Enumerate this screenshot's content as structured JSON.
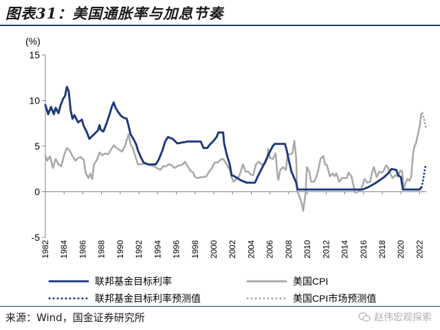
{
  "header": {
    "title": "图表31：美国通胀率与加息节奏"
  },
  "footer": {
    "source": "来源：Wind，国金证券研究所",
    "watermark": "赵伟宏观探索"
  },
  "chart_data": {
    "type": "line",
    "title": "",
    "unit_label": "(%)",
    "xlabel": "",
    "ylabel": "",
    "xlim": [
      1982,
      2022.7
    ],
    "ylim": [
      -5,
      15
    ],
    "yticks": [
      -5,
      0,
      5,
      10,
      15
    ],
    "xticks": [
      1982,
      1984,
      1986,
      1988,
      1990,
      1992,
      1994,
      1996,
      1998,
      2000,
      2002,
      2004,
      2006,
      2008,
      2010,
      2012,
      2014,
      2016,
      2018,
      2020,
      2022
    ],
    "grid": false,
    "legend_position": "bottom",
    "colors": {
      "fed": "#1f3a7a",
      "cpi": "#a9a9a9",
      "axis": "#808080"
    },
    "series": [
      {
        "name": "联邦基金目标利率",
        "style": "solid",
        "color": "#1f3a7a",
        "points": [
          [
            1982,
            9.5
          ],
          [
            1982.3,
            8.5
          ],
          [
            1982.6,
            9.3
          ],
          [
            1982.9,
            8.5
          ],
          [
            1983.1,
            9.2
          ],
          [
            1983.4,
            8.6
          ],
          [
            1983.6,
            9.4
          ],
          [
            1983.9,
            10.2
          ],
          [
            1984.1,
            10.5
          ],
          [
            1984.3,
            11.5
          ],
          [
            1984.5,
            11.0
          ],
          [
            1984.7,
            8.9
          ],
          [
            1984.9,
            8.0
          ],
          [
            1985.1,
            8.4
          ],
          [
            1985.5,
            7.6
          ],
          [
            1985.9,
            7.9
          ],
          [
            1986.1,
            7.2
          ],
          [
            1986.4,
            6.6
          ],
          [
            1986.7,
            5.8
          ],
          [
            1986.9,
            6.0
          ],
          [
            1987.2,
            6.3
          ],
          [
            1987.6,
            6.7
          ],
          [
            1987.8,
            7.3
          ],
          [
            1987.9,
            6.8
          ],
          [
            1988.2,
            6.6
          ],
          [
            1988.5,
            7.4
          ],
          [
            1988.8,
            8.3
          ],
          [
            1989.1,
            9.3
          ],
          [
            1989.3,
            9.8
          ],
          [
            1989.5,
            9.2
          ],
          [
            1989.8,
            8.7
          ],
          [
            1990.1,
            8.3
          ],
          [
            1990.4,
            8.1
          ],
          [
            1990.7,
            8.0
          ],
          [
            1990.9,
            7.2
          ],
          [
            1991.1,
            6.3
          ],
          [
            1991.4,
            5.8
          ],
          [
            1991.7,
            5.2
          ],
          [
            1991.9,
            4.5
          ],
          [
            1992.2,
            3.8
          ],
          [
            1992.5,
            3.2
          ],
          [
            1993,
            3.0
          ],
          [
            1993.8,
            3.0
          ],
          [
            1994.1,
            3.5
          ],
          [
            1994.5,
            4.5
          ],
          [
            1994.8,
            5.5
          ],
          [
            1995.1,
            6.0
          ],
          [
            1995.6,
            5.8
          ],
          [
            1996.1,
            5.3
          ],
          [
            1997.2,
            5.5
          ],
          [
            1998.6,
            5.5
          ],
          [
            1998.9,
            4.8
          ],
          [
            1999.3,
            4.8
          ],
          [
            1999.6,
            5.2
          ],
          [
            1999.9,
            5.5
          ],
          [
            2000.3,
            6.0
          ],
          [
            2000.5,
            6.5
          ],
          [
            2001,
            6.5
          ],
          [
            2001.1,
            5.3
          ],
          [
            2001.4,
            4.0
          ],
          [
            2001.7,
            3.0
          ],
          [
            2001.9,
            1.8
          ],
          [
            2002.1,
            1.75
          ],
          [
            2002.9,
            1.25
          ],
          [
            2003.5,
            1.0
          ],
          [
            2004.4,
            1.0
          ],
          [
            2004.7,
            1.7
          ],
          [
            2005.1,
            2.5
          ],
          [
            2005.5,
            3.3
          ],
          [
            2005.9,
            4.2
          ],
          [
            2006.3,
            5.0
          ],
          [
            2006.5,
            5.25
          ],
          [
            2007.6,
            5.25
          ],
          [
            2007.8,
            4.5
          ],
          [
            2008.0,
            3.5
          ],
          [
            2008.3,
            2.2
          ],
          [
            2008.8,
            1.0
          ],
          [
            2008.95,
            0.25
          ],
          [
            2015.9,
            0.25
          ],
          [
            2016.5,
            0.5
          ],
          [
            2017.2,
            0.9
          ],
          [
            2017.7,
            1.25
          ],
          [
            2018.2,
            1.6
          ],
          [
            2018.6,
            2.0
          ],
          [
            2019.0,
            2.5
          ],
          [
            2019.5,
            2.4
          ],
          [
            2019.7,
            1.8
          ],
          [
            2020.0,
            1.6
          ],
          [
            2020.2,
            0.25
          ],
          [
            2022.0,
            0.25
          ],
          [
            2022.2,
            0.5
          ]
        ]
      },
      {
        "name": "美国CPI",
        "style": "solid",
        "color": "#a9a9a9",
        "points": [
          [
            1982,
            4.0
          ],
          [
            1982.2,
            3.4
          ],
          [
            1982.5,
            3.9
          ],
          [
            1982.8,
            2.6
          ],
          [
            1983.1,
            3.6
          ],
          [
            1983.4,
            3.0
          ],
          [
            1983.7,
            2.8
          ],
          [
            1984.0,
            4.0
          ],
          [
            1984.3,
            4.8
          ],
          [
            1984.6,
            4.5
          ],
          [
            1984.9,
            3.9
          ],
          [
            1985.2,
            3.4
          ],
          [
            1985.5,
            3.7
          ],
          [
            1985.8,
            3.8
          ],
          [
            1986.1,
            3.5
          ],
          [
            1986.3,
            2.1
          ],
          [
            1986.6,
            1.5
          ],
          [
            1986.8,
            2.0
          ],
          [
            1987.0,
            1.4
          ],
          [
            1987.2,
            3.0
          ],
          [
            1987.5,
            3.5
          ],
          [
            1987.8,
            4.3
          ],
          [
            1988.1,
            4.0
          ],
          [
            1988.4,
            4.2
          ],
          [
            1988.7,
            4.1
          ],
          [
            1989.0,
            4.6
          ],
          [
            1989.3,
            5.1
          ],
          [
            1989.6,
            4.8
          ],
          [
            1989.9,
            4.6
          ],
          [
            1990.2,
            4.4
          ],
          [
            1990.5,
            5.0
          ],
          [
            1990.7,
            5.7
          ],
          [
            1990.9,
            6.3
          ],
          [
            1991.1,
            5.2
          ],
          [
            1991.4,
            4.6
          ],
          [
            1991.7,
            3.6
          ],
          [
            1991.9,
            3.0
          ],
          [
            1992.2,
            3.0
          ],
          [
            1992.6,
            3.1
          ],
          [
            1992.9,
            3.0
          ],
          [
            1993.2,
            2.9
          ],
          [
            1993.6,
            2.8
          ],
          [
            1993.9,
            2.6
          ],
          [
            1994.3,
            2.4
          ],
          [
            1994.6,
            2.8
          ],
          [
            1994.9,
            2.8
          ],
          [
            1995.2,
            3.0
          ],
          [
            1995.5,
            2.9
          ],
          [
            1995.8,
            2.6
          ],
          [
            1996.1,
            2.8
          ],
          [
            1996.4,
            2.9
          ],
          [
            1996.7,
            3.0
          ],
          [
            1996.9,
            3.3
          ],
          [
            1997.2,
            2.8
          ],
          [
            1997.5,
            2.3
          ],
          [
            1997.8,
            2.1
          ],
          [
            1998.0,
            1.6
          ],
          [
            1998.3,
            1.5
          ],
          [
            1998.6,
            1.6
          ],
          [
            1998.9,
            1.6
          ],
          [
            1999.2,
            1.7
          ],
          [
            1999.5,
            2.2
          ],
          [
            1999.8,
            2.6
          ],
          [
            2000.1,
            3.2
          ],
          [
            2000.4,
            3.2
          ],
          [
            2000.7,
            3.5
          ],
          [
            2001.0,
            3.6
          ],
          [
            2001.2,
            3.3
          ],
          [
            2001.5,
            2.8
          ],
          [
            2001.7,
            2.4
          ],
          [
            2001.9,
            1.6
          ],
          [
            2002.1,
            1.1
          ],
          [
            2002.4,
            1.4
          ],
          [
            2002.7,
            1.7
          ],
          [
            2002.9,
            2.3
          ],
          [
            2003.1,
            3.0
          ],
          [
            2003.4,
            2.2
          ],
          [
            2003.7,
            2.2
          ],
          [
            2003.9,
            1.9
          ],
          [
            2004.2,
            1.8
          ],
          [
            2004.5,
            3.0
          ],
          [
            2004.8,
            3.3
          ],
          [
            2005.1,
            3.0
          ],
          [
            2005.4,
            3.0
          ],
          [
            2005.7,
            3.6
          ],
          [
            2005.8,
            4.7
          ],
          [
            2006.0,
            3.7
          ],
          [
            2006.3,
            3.6
          ],
          [
            2006.6,
            4.2
          ],
          [
            2006.8,
            1.8
          ],
          [
            2006.9,
            1.3
          ],
          [
            2007.1,
            2.4
          ],
          [
            2007.4,
            2.7
          ],
          [
            2007.7,
            2.4
          ],
          [
            2007.9,
            4.1
          ],
          [
            2008.1,
            4.1
          ],
          [
            2008.4,
            4.2
          ],
          [
            2008.6,
            5.6
          ],
          [
            2008.8,
            3.7
          ],
          [
            2008.9,
            0.1
          ],
          [
            2009.1,
            -0.4
          ],
          [
            2009.4,
            -1.3
          ],
          [
            2009.55,
            -2.1
          ],
          [
            2009.8,
            -0.2
          ],
          [
            2009.95,
            2.7
          ],
          [
            2010.2,
            2.2
          ],
          [
            2010.4,
            1.1
          ],
          [
            2010.7,
            1.1
          ],
          [
            2010.9,
            1.5
          ],
          [
            2011.1,
            2.1
          ],
          [
            2011.4,
            3.6
          ],
          [
            2011.7,
            3.9
          ],
          [
            2011.9,
            3.0
          ],
          [
            2012.1,
            2.9
          ],
          [
            2012.4,
            1.7
          ],
          [
            2012.7,
            2.0
          ],
          [
            2012.9,
            1.7
          ],
          [
            2013.1,
            2.0
          ],
          [
            2013.4,
            1.1
          ],
          [
            2013.7,
            1.5
          ],
          [
            2013.9,
            1.5
          ],
          [
            2014.2,
            1.5
          ],
          [
            2014.4,
            2.1
          ],
          [
            2014.7,
            1.7
          ],
          [
            2014.9,
            0.8
          ],
          [
            2015.1,
            -0.1
          ],
          [
            2015.4,
            0.0
          ],
          [
            2015.7,
            0.2
          ],
          [
            2015.9,
            0.7
          ],
          [
            2016.1,
            1.4
          ],
          [
            2016.4,
            1.0
          ],
          [
            2016.7,
            1.1
          ],
          [
            2016.9,
            2.1
          ],
          [
            2017.1,
            2.7
          ],
          [
            2017.4,
            1.6
          ],
          [
            2017.7,
            2.2
          ],
          [
            2017.9,
            2.1
          ],
          [
            2018.1,
            2.2
          ],
          [
            2018.4,
            2.9
          ],
          [
            2018.6,
            2.7
          ],
          [
            2018.9,
            1.9
          ],
          [
            2019.1,
            1.5
          ],
          [
            2019.4,
            1.8
          ],
          [
            2019.7,
            1.7
          ],
          [
            2019.9,
            2.3
          ],
          [
            2020.1,
            2.3
          ],
          [
            2020.3,
            0.3
          ],
          [
            2020.5,
            1.0
          ],
          [
            2020.7,
            1.4
          ],
          [
            2020.9,
            1.2
          ],
          [
            2021.1,
            1.7
          ],
          [
            2021.3,
            4.2
          ],
          [
            2021.45,
            5.0
          ],
          [
            2021.6,
            5.3
          ],
          [
            2021.8,
            6.2
          ],
          [
            2021.95,
            7.0
          ],
          [
            2022.05,
            7.5
          ],
          [
            2022.15,
            8.5
          ],
          [
            2022.3,
            8.6
          ]
        ]
      },
      {
        "name": "联邦基金目标利率预测值",
        "style": "dotted",
        "color": "#1f3a7a",
        "points": [
          [
            2022.2,
            0.5
          ],
          [
            2022.35,
            1.2
          ],
          [
            2022.45,
            1.8
          ],
          [
            2022.55,
            2.5
          ],
          [
            2022.65,
            3.0
          ]
        ]
      },
      {
        "name": "美国CPI市场预测值",
        "style": "dotted",
        "color": "#a9a9a9",
        "points": [
          [
            2022.3,
            8.6
          ],
          [
            2022.4,
            8.2
          ],
          [
            2022.5,
            7.8
          ],
          [
            2022.6,
            7.3
          ],
          [
            2022.7,
            6.9
          ]
        ]
      }
    ]
  }
}
